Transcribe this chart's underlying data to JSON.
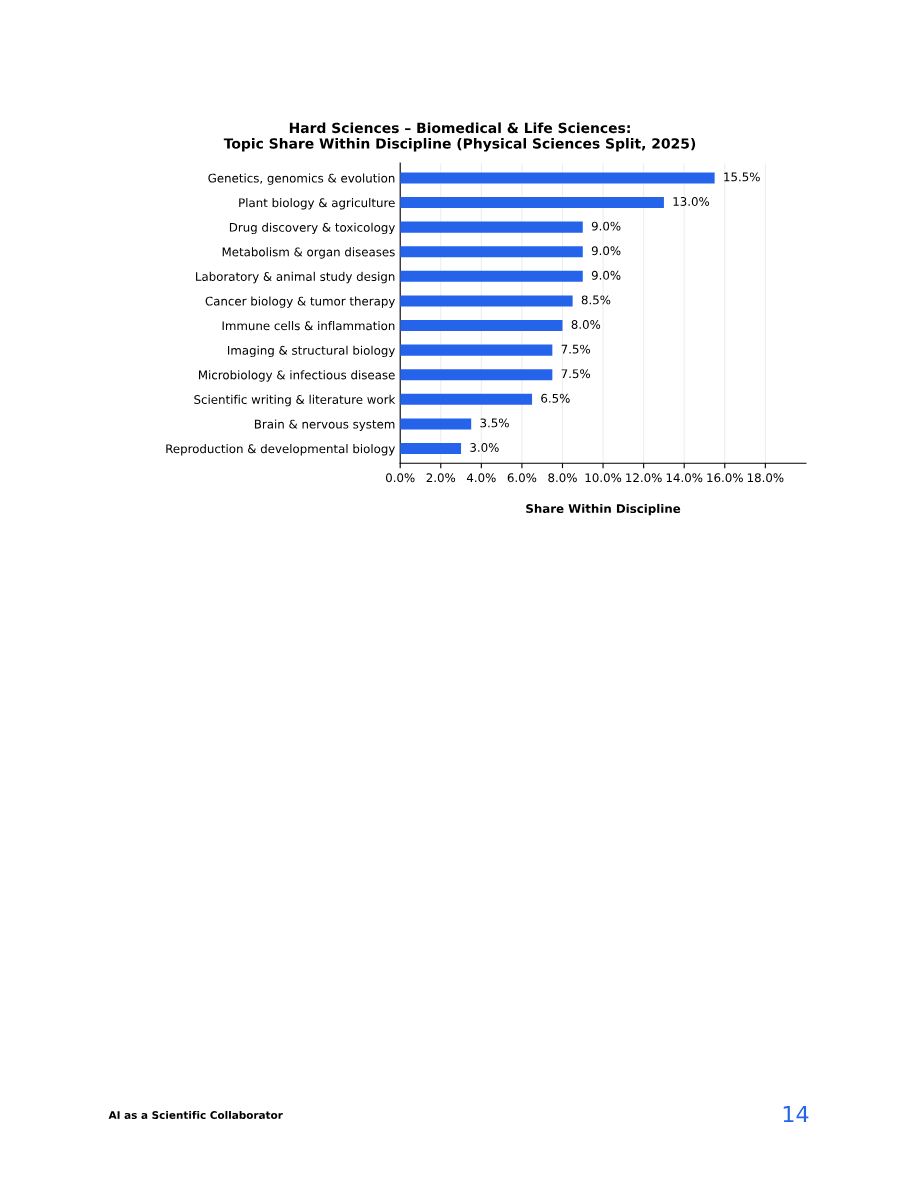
{
  "chart_data": {
    "type": "bar",
    "orientation": "horizontal",
    "title": "Hard Sciences – Biomedical & Life Sciences:\nTopic Share Within Discipline (Physical Sciences Split, 2025)",
    "xlabel": "Share Within Discipline",
    "categories": [
      "Genetics, genomics & evolution",
      "Plant biology & agriculture",
      "Drug discovery & toxicology",
      "Metabolism & organ diseases",
      "Laboratory & animal study design",
      "Cancer biology & tumor therapy",
      "Immune cells & inflammation",
      "Imaging & structural biology",
      "Microbiology & infectious disease",
      "Scientific writing & literature work",
      "Brain & nervous system",
      "Reproduction & developmental biology"
    ],
    "values": [
      15.5,
      13.0,
      9.0,
      9.0,
      9.0,
      8.5,
      8.0,
      7.5,
      7.5,
      6.5,
      3.5,
      3.0
    ],
    "value_labels": [
      "15.5%",
      "13.0%",
      "9.0%",
      "9.0%",
      "9.0%",
      "8.5%",
      "8.0%",
      "7.5%",
      "7.5%",
      "6.5%",
      "3.5%",
      "3.0%"
    ],
    "color": "#2563eb",
    "xlim": [
      0,
      20
    ],
    "xticks": [
      {
        "value": 0,
        "label": "0.0%"
      },
      {
        "value": 2,
        "label": "2.0%"
      },
      {
        "value": 4,
        "label": "4.0%"
      },
      {
        "value": 6,
        "label": "6.0%"
      },
      {
        "value": 8,
        "label": "8.0%"
      },
      {
        "value": 10,
        "label": "10.0%"
      },
      {
        "value": 12,
        "label": "12.0%"
      },
      {
        "value": 14,
        "label": "14.0%"
      },
      {
        "value": 16,
        "label": "16.0%"
      },
      {
        "value": 18,
        "label": "18.0%"
      }
    ],
    "grid": "x",
    "annotations": [
      "AI as a Scientific Collaborator",
      "14"
    ]
  }
}
